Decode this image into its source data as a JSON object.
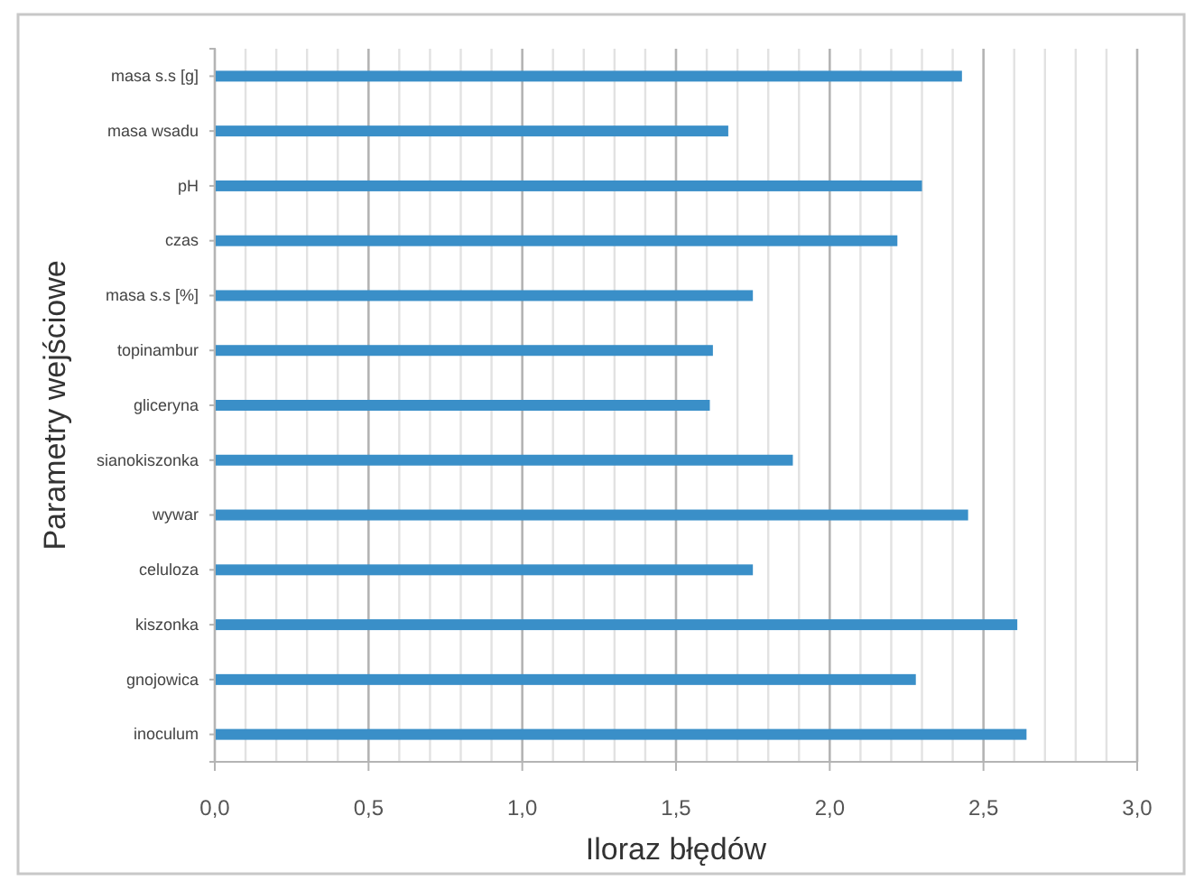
{
  "chart_data": {
    "type": "bar",
    "orientation": "horizontal",
    "xlabel": "Iloraz błędów",
    "ylabel": "Parametry wejściowe",
    "categories": [
      "masa s.s [g]",
      "masa wsadu",
      "pH",
      "czas",
      "masa s.s [%]",
      "topinambur",
      "gliceryna",
      "sianokiszonka",
      "wywar",
      "celuloza",
      "kiszonka",
      "gnojowica",
      "inoculum"
    ],
    "values": [
      2.43,
      1.67,
      2.3,
      2.22,
      1.75,
      1.62,
      1.61,
      1.88,
      2.45,
      1.75,
      2.61,
      2.28,
      2.64
    ],
    "color": "#3a8fc8",
    "xlim": [
      0,
      3
    ],
    "xticks": [
      {
        "value": 0,
        "label": "0,0"
      },
      {
        "value": 0.5,
        "label": "0,5"
      },
      {
        "value": 1,
        "label": "1,0"
      },
      {
        "value": 1.5,
        "label": "1,5"
      },
      {
        "value": 2,
        "label": "2,0"
      },
      {
        "value": 2.5,
        "label": "2,5"
      },
      {
        "value": 3,
        "label": "3,0"
      }
    ],
    "grid": "x"
  }
}
